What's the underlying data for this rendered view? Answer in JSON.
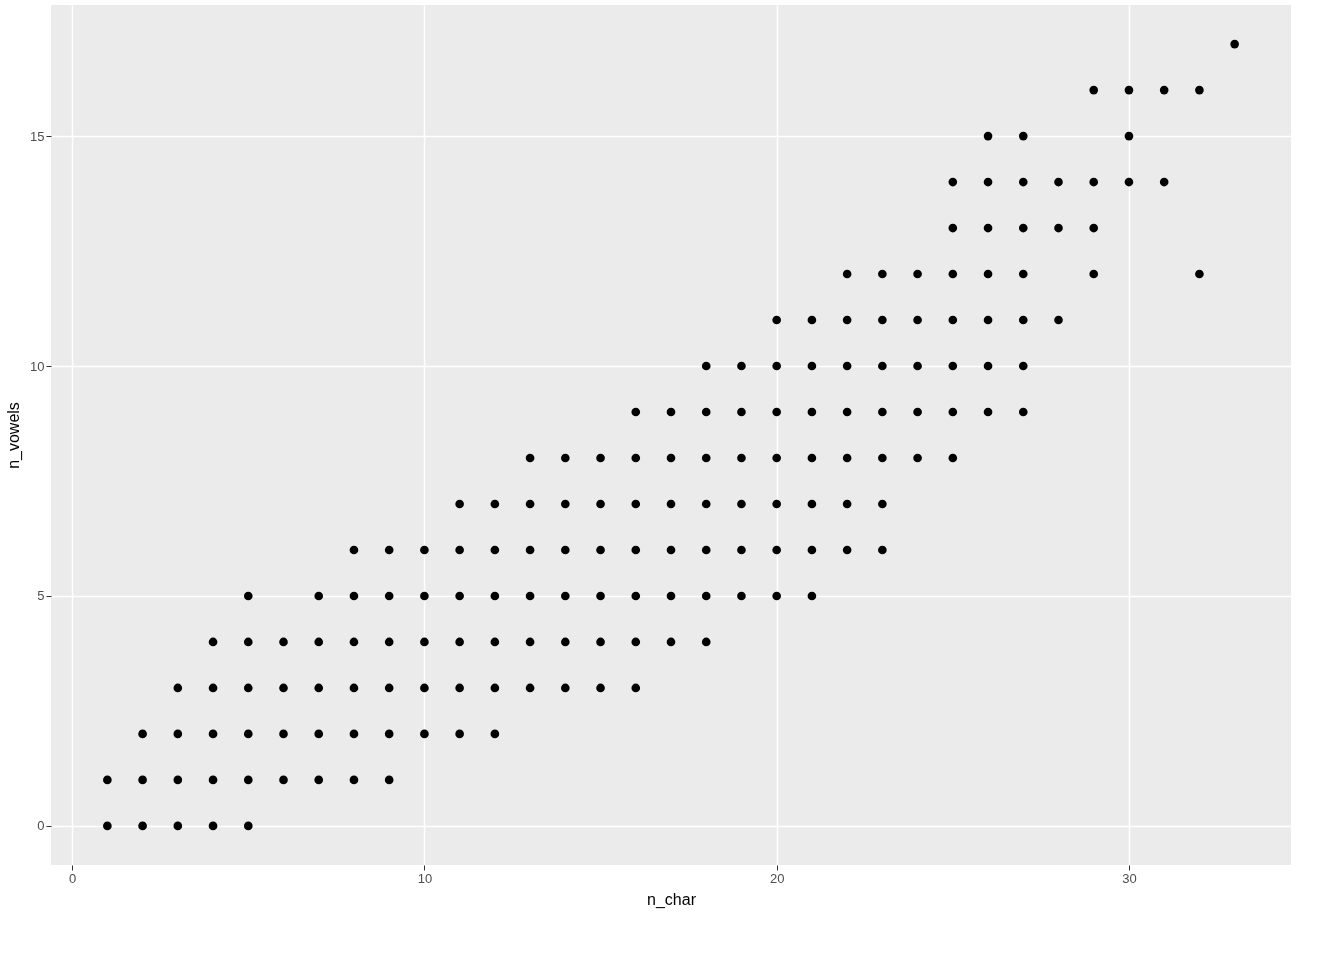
{
  "chart_data": {
    "type": "scatter",
    "xlabel": "n_char",
    "ylabel": "n_vowels",
    "x": [
      1,
      1,
      2,
      2,
      2,
      3,
      3,
      3,
      3,
      4,
      4,
      4,
      4,
      4,
      5,
      5,
      5,
      5,
      5,
      5,
      6,
      6,
      6,
      6,
      7,
      7,
      7,
      7,
      7,
      8,
      8,
      8,
      8,
      8,
      8,
      9,
      9,
      9,
      9,
      9,
      9,
      10,
      10,
      10,
      10,
      10,
      11,
      11,
      11,
      11,
      11,
      11,
      12,
      12,
      12,
      12,
      12,
      12,
      13,
      13,
      13,
      13,
      13,
      13,
      14,
      14,
      14,
      14,
      14,
      14,
      15,
      15,
      15,
      15,
      15,
      15,
      16,
      16,
      16,
      16,
      16,
      16,
      16,
      17,
      17,
      17,
      17,
      17,
      17,
      18,
      18,
      18,
      18,
      18,
      18,
      18,
      19,
      19,
      19,
      19,
      19,
      19,
      20,
      20,
      20,
      20,
      20,
      20,
      20,
      21,
      21,
      21,
      21,
      21,
      21,
      21,
      22,
      22,
      22,
      22,
      22,
      22,
      22,
      23,
      23,
      23,
      23,
      23,
      23,
      23,
      24,
      24,
      24,
      24,
      24,
      25,
      25,
      25,
      25,
      25,
      25,
      25,
      26,
      26,
      26,
      26,
      26,
      26,
      26,
      27,
      27,
      27,
      27,
      27,
      27,
      27,
      28,
      28,
      28,
      29,
      29,
      29,
      29,
      30,
      30,
      30,
      31,
      31,
      32,
      32,
      33
    ],
    "values": [
      0,
      1,
      0,
      1,
      2,
      0,
      1,
      2,
      3,
      0,
      1,
      2,
      3,
      4,
      0,
      1,
      2,
      3,
      4,
      5,
      1,
      2,
      3,
      4,
      1,
      2,
      3,
      4,
      5,
      1,
      2,
      3,
      4,
      5,
      6,
      1,
      2,
      3,
      4,
      5,
      6,
      2,
      3,
      4,
      5,
      6,
      2,
      3,
      4,
      5,
      6,
      7,
      2,
      3,
      4,
      5,
      6,
      7,
      3,
      4,
      5,
      6,
      7,
      8,
      3,
      4,
      5,
      6,
      7,
      8,
      3,
      4,
      5,
      6,
      7,
      8,
      3,
      4,
      5,
      6,
      7,
      8,
      9,
      4,
      5,
      6,
      7,
      8,
      9,
      4,
      5,
      6,
      7,
      8,
      9,
      10,
      5,
      6,
      7,
      8,
      9,
      10,
      5,
      6,
      7,
      8,
      9,
      10,
      11,
      5,
      6,
      7,
      8,
      9,
      10,
      11,
      6,
      7,
      8,
      9,
      10,
      11,
      12,
      6,
      7,
      8,
      9,
      10,
      11,
      12,
      8,
      9,
      10,
      11,
      12,
      8,
      9,
      10,
      11,
      12,
      13,
      14,
      9,
      10,
      11,
      12,
      13,
      14,
      15,
      9,
      10,
      11,
      12,
      13,
      14,
      15,
      11,
      13,
      14,
      12,
      13,
      14,
      16,
      14,
      15,
      16,
      14,
      16,
      12,
      16,
      17
    ],
    "color": "#000000",
    "marker": "circle",
    "xlim": [
      -0.6,
      34.6
    ],
    "ylim": [
      -0.85,
      17.85
    ],
    "xticks": [
      0,
      10,
      20,
      30
    ],
    "yticks": [
      0,
      5,
      10,
      15
    ],
    "grid": true
  }
}
